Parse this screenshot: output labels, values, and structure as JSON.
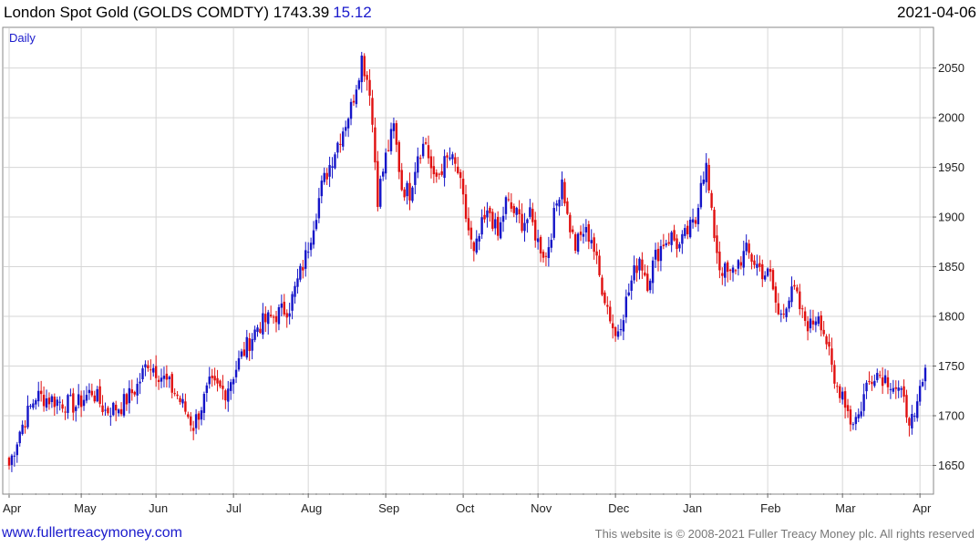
{
  "header": {
    "title": "London Spot Gold (GOLDS COMDTY) 1743.39",
    "change": "15.12",
    "date": "2021-04-06"
  },
  "footer": {
    "site": "www.fullertreacymoney.com",
    "copyright": "This website is © 2008-2021 Fuller Treacy Money plc. All rights reserved"
  },
  "colors": {
    "up": "#1515c8",
    "down": "#e01010",
    "change": "#1a1acc",
    "site": "#1a1acc",
    "copyright": "#777777",
    "period": "#1a1acc",
    "grid": "#d6d6d6"
  },
  "chart_data": {
    "type": "candlestick",
    "period_label": "Daily",
    "ylim": [
      1622,
      2090
    ],
    "y_ticks": [
      1650,
      1700,
      1750,
      1800,
      1850,
      1900,
      1950,
      2000,
      2050
    ],
    "x_months": [
      "Apr",
      "May",
      "Jun",
      "Jul",
      "Aug",
      "Sep",
      "Oct",
      "Nov",
      "Dec",
      "Jan",
      "Feb",
      "Mar",
      "Apr"
    ],
    "grid": true,
    "anchors": [
      [
        0,
        1650
      ],
      [
        4,
        1685
      ],
      [
        10,
        1720
      ],
      [
        18,
        1715
      ],
      [
        25,
        1710
      ],
      [
        31,
        1725
      ],
      [
        36,
        1705
      ],
      [
        42,
        1710
      ],
      [
        48,
        1730
      ],
      [
        52,
        1755
      ],
      [
        57,
        1740
      ],
      [
        63,
        1720
      ],
      [
        69,
        1690
      ],
      [
        75,
        1730
      ],
      [
        81,
        1725
      ],
      [
        87,
        1760
      ],
      [
        93,
        1790
      ],
      [
        99,
        1800
      ],
      [
        105,
        1810
      ],
      [
        111,
        1860
      ],
      [
        117,
        1930
      ],
      [
        123,
        1975
      ],
      [
        128,
        2010
      ],
      [
        132,
        2060
      ],
      [
        135,
        2030
      ],
      [
        138,
        1920
      ],
      [
        141,
        1960
      ],
      [
        144,
        1990
      ],
      [
        147,
        1930
      ],
      [
        150,
        1925
      ],
      [
        153,
        1965
      ],
      [
        156,
        1975
      ],
      [
        159,
        1935
      ],
      [
        162,
        1950
      ],
      [
        165,
        1960
      ],
      [
        168,
        1945
      ],
      [
        171,
        1900
      ],
      [
        174,
        1860
      ],
      [
        177,
        1890
      ],
      [
        180,
        1905
      ],
      [
        183,
        1880
      ],
      [
        186,
        1915
      ],
      [
        189,
        1905
      ],
      [
        192,
        1895
      ],
      [
        195,
        1900
      ],
      [
        198,
        1875
      ],
      [
        201,
        1860
      ],
      [
        204,
        1900
      ],
      [
        207,
        1940
      ],
      [
        209,
        1900
      ],
      [
        212,
        1870
      ],
      [
        215,
        1885
      ],
      [
        218,
        1880
      ],
      [
        221,
        1840
      ],
      [
        224,
        1810
      ],
      [
        227,
        1780
      ],
      [
        230,
        1805
      ],
      [
        233,
        1835
      ],
      [
        236,
        1860
      ],
      [
        239,
        1835
      ],
      [
        242,
        1860
      ],
      [
        245,
        1875
      ],
      [
        248,
        1880
      ],
      [
        251,
        1870
      ],
      [
        254,
        1885
      ],
      [
        257,
        1895
      ],
      [
        259,
        1940
      ],
      [
        261,
        1950
      ],
      [
        263,
        1900
      ],
      [
        266,
        1850
      ],
      [
        270,
        1840
      ],
      [
        273,
        1855
      ],
      [
        276,
        1865
      ],
      [
        279,
        1855
      ],
      [
        282,
        1845
      ],
      [
        285,
        1840
      ],
      [
        288,
        1800
      ],
      [
        291,
        1815
      ],
      [
        294,
        1825
      ],
      [
        297,
        1800
      ],
      [
        300,
        1790
      ],
      [
        303,
        1805
      ],
      [
        306,
        1775
      ],
      [
        309,
        1730
      ],
      [
        312,
        1725
      ],
      [
        315,
        1695
      ],
      [
        318,
        1700
      ],
      [
        321,
        1730
      ],
      [
        324,
        1745
      ],
      [
        327,
        1740
      ],
      [
        330,
        1735
      ],
      [
        333,
        1725
      ],
      [
        336,
        1705
      ],
      [
        339,
        1690
      ],
      [
        341,
        1725
      ],
      [
        343,
        1740
      ]
    ]
  }
}
